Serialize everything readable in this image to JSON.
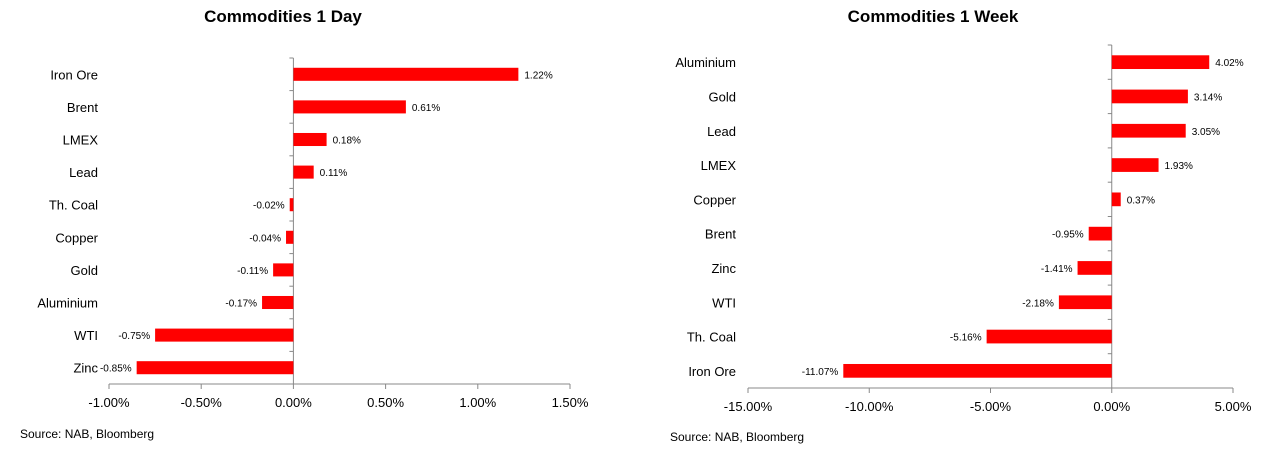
{
  "charts": [
    {
      "title": "Commodities 1 Day",
      "source": "Source: NAB, Bloomberg",
      "chart_data": {
        "type": "bar",
        "orientation": "horizontal",
        "title": "Commodities 1 Day",
        "categories": [
          "Iron Ore",
          "Brent",
          "LMEX",
          "Lead",
          "Th. Coal",
          "Copper",
          "Gold",
          "Aluminium",
          "WTI",
          "Zinc"
        ],
        "values": [
          1.22,
          0.61,
          0.18,
          0.11,
          -0.02,
          -0.04,
          -0.11,
          -0.17,
          -0.75,
          -0.85
        ],
        "data_labels": [
          "1.22%",
          "0.61%",
          "0.18%",
          "0.11%",
          "-0.02%",
          "-0.04%",
          "-0.11%",
          "-0.17%",
          "-0.75%",
          "-0.85%"
        ],
        "xlim": [
          -1.0,
          1.5
        ],
        "x_ticks": [
          -1.0,
          -0.5,
          0.0,
          0.5,
          1.0,
          1.5
        ],
        "x_tick_labels": [
          "-1.00%",
          "-0.50%",
          "0.00%",
          "0.50%",
          "1.00%",
          "1.50%"
        ],
        "bar_color": "#ff0000",
        "grid": false,
        "legend": "none"
      }
    },
    {
      "title": "Commodities 1 Week",
      "source": "Source: NAB, Bloomberg",
      "chart_data": {
        "type": "bar",
        "orientation": "horizontal",
        "title": "Commodities 1 Week",
        "categories": [
          "Aluminium",
          "Gold",
          "Lead",
          "LMEX",
          "Copper",
          "Brent",
          "Zinc",
          "WTI",
          "Th. Coal",
          "Iron Ore"
        ],
        "values": [
          4.02,
          3.14,
          3.05,
          1.93,
          0.37,
          -0.95,
          -1.41,
          -2.18,
          -5.16,
          -11.07
        ],
        "data_labels": [
          "4.02%",
          "3.14%",
          "3.05%",
          "1.93%",
          "0.37%",
          "-0.95%",
          "-1.41%",
          "-2.18%",
          "-5.16%",
          "-11.07%"
        ],
        "xlim": [
          -15.0,
          5.0
        ],
        "x_ticks": [
          -15.0,
          -10.0,
          -5.0,
          0.0,
          5.0
        ],
        "x_tick_labels": [
          "-15.00%",
          "-10.00%",
          "-5.00%",
          "0.00%",
          "5.00%"
        ],
        "bar_color": "#ff0000",
        "grid": false,
        "legend": "none"
      }
    }
  ]
}
